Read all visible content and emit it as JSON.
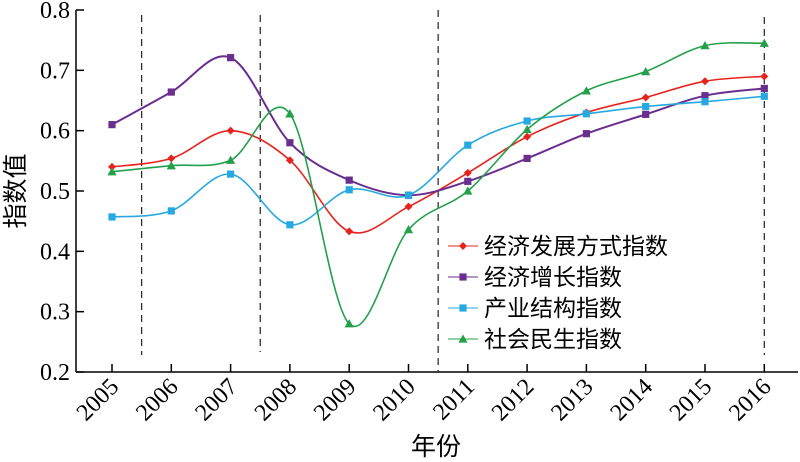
{
  "chart_data": {
    "type": "line",
    "xlabel": "年份",
    "ylabel": "指数值",
    "categories": [
      "2005",
      "2006",
      "2007",
      "2008",
      "2009",
      "2010",
      "2011",
      "2012",
      "2013",
      "2014",
      "2015",
      "2016"
    ],
    "ylim": [
      0.2,
      0.8
    ],
    "yticks": [
      "0.2",
      "0.3",
      "0.4",
      "0.5",
      "0.6",
      "0.7",
      "0.8"
    ],
    "vertical_reference_lines_between": [
      [
        2005,
        2006
      ],
      [
        2007,
        2008
      ],
      [
        2010,
        2011
      ],
      [
        2016,
        2016
      ]
    ],
    "legend_position": "center-right",
    "grid": false,
    "series": [
      {
        "name": "经济发展方式指数",
        "color": "#e8231d",
        "marker": "diamond",
        "values": [
          0.54,
          0.554,
          0.6,
          0.551,
          0.433,
          0.474,
          0.53,
          0.59,
          0.63,
          0.655,
          0.682,
          0.69
        ]
      },
      {
        "name": "经济增长指数",
        "color": "#6a2e8e",
        "marker": "square",
        "values": [
          0.61,
          0.664,
          0.721,
          0.58,
          0.518,
          0.493,
          0.516,
          0.554,
          0.595,
          0.627,
          0.658,
          0.67
        ]
      },
      {
        "name": "产业结构指数",
        "color": "#26a9e0",
        "marker": "square",
        "values": [
          0.457,
          0.467,
          0.528,
          0.444,
          0.502,
          0.493,
          0.576,
          0.616,
          0.628,
          0.64,
          0.648,
          0.657
        ]
      },
      {
        "name": "社会民生指数",
        "color": "#23a04a",
        "marker": "triangle",
        "values": [
          0.532,
          0.542,
          0.551,
          0.628,
          0.28,
          0.436,
          0.5,
          0.602,
          0.666,
          0.698,
          0.741,
          0.745
        ]
      }
    ]
  }
}
